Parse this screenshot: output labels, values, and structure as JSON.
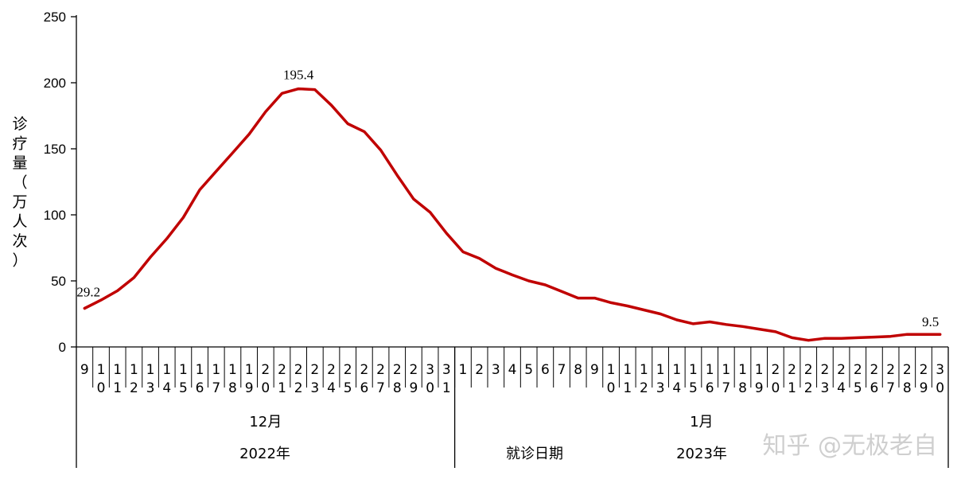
{
  "chart_data": {
    "type": "line",
    "ylabel": "诊疗量（万人次）",
    "xlabel": "就诊日期",
    "ylim": [
      0,
      250
    ],
    "yticks": [
      0,
      50,
      100,
      150,
      200,
      250
    ],
    "x": [
      "9",
      "10",
      "11",
      "12",
      "13",
      "14",
      "15",
      "16",
      "17",
      "18",
      "19",
      "20",
      "21",
      "22",
      "23",
      "24",
      "25",
      "26",
      "27",
      "28",
      "29",
      "30",
      "31",
      "1",
      "2",
      "3",
      "4",
      "5",
      "6",
      "7",
      "8",
      "9",
      "10",
      "11",
      "12",
      "13",
      "14",
      "15",
      "16",
      "17",
      "18",
      "19",
      "20",
      "21",
      "22",
      "23",
      "24",
      "25",
      "26",
      "27",
      "28",
      "29",
      "30"
    ],
    "series": [
      {
        "color": "#c00000",
        "values": [
          29.2,
          35.5,
          42.5,
          52.5,
          68,
          82,
          98,
          119,
          133,
          147,
          161,
          178,
          192,
          195.4,
          194.8,
          183,
          169,
          163,
          149,
          130,
          112,
          102,
          86,
          72,
          67,
          59.5,
          54.5,
          50,
          47,
          42,
          37,
          37,
          33.5,
          31,
          28,
          25,
          20.5,
          17.5,
          19,
          17,
          15.5,
          13.5,
          11.5,
          7,
          5,
          6.5,
          6.5,
          7,
          7.5,
          8,
          9.5,
          9.5,
          9.5
        ]
      }
    ],
    "data_labels": [
      {
        "index": 0,
        "text": "29.2"
      },
      {
        "index": 13,
        "text": "195.4"
      },
      {
        "index": 52,
        "text": "9.5"
      }
    ],
    "month_groups": [
      {
        "label": "12月",
        "start": 0,
        "end": 22
      },
      {
        "label": "1月",
        "start": 23,
        "end": 52
      }
    ],
    "year_groups": [
      {
        "label": "2022年",
        "start": 0,
        "end": 22
      },
      {
        "label": "2023年",
        "start": 23,
        "end": 52
      }
    ],
    "grid": false
  },
  "watermark": "知乎 @无极老自"
}
